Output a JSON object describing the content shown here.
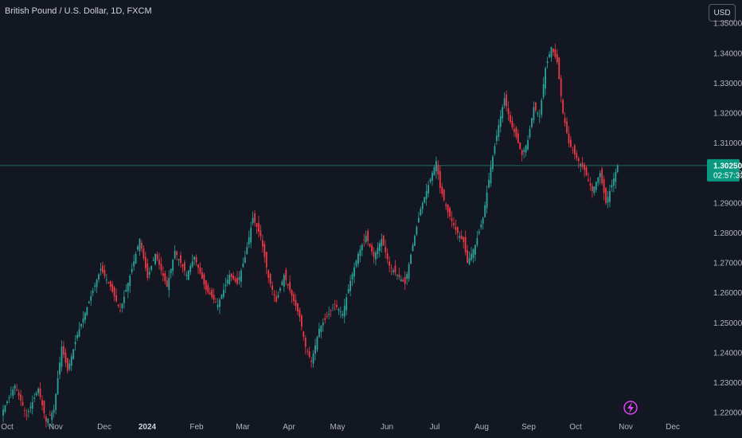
{
  "header": {
    "title": "British Pound / U.S. Dollar, 1D, FXCM",
    "currency_label": "USD"
  },
  "price_tag": {
    "price": "1.30250",
    "countdown": "02:57:32",
    "color": "#089981"
  },
  "colors": {
    "background": "#131722",
    "up": "#26a69a",
    "down": "#f23645",
    "axis_text": "#b2b5be",
    "current_line": "#1e6b63",
    "lightning_icon": "#e040fb"
  },
  "icons": {
    "marker": "lightning-icon"
  },
  "chart_data": {
    "type": "candlestick",
    "title": "British Pound / U.S. Dollar, 1D, FXCM",
    "ylim": [
      1.2195,
      1.3498
    ],
    "y_ticks": [
      "1.35000",
      "1.34000",
      "1.33000",
      "1.32000",
      "1.31000",
      "1.30000",
      "1.29000",
      "1.28000",
      "1.27000",
      "1.26000",
      "1.25000",
      "1.24000",
      "1.23000",
      "1.22000"
    ],
    "x_ticks": [
      "Oct",
      "Nov",
      "Dec",
      "2024",
      "Feb",
      "Mar",
      "Apr",
      "May",
      "Jun",
      "Jul",
      "Aug",
      "Sep",
      "Oct",
      "Nov",
      "Dec"
    ],
    "x_ticks_bold": [
      "2024"
    ],
    "last_price": 1.3025,
    "anchors": [
      [
        0,
        1.221
      ],
      [
        6,
        1.229
      ],
      [
        12,
        1.219
      ],
      [
        18,
        1.228
      ],
      [
        22,
        1.217
      ],
      [
        26,
        1.221
      ],
      [
        30,
        1.242
      ],
      [
        33,
        1.234
      ],
      [
        38,
        1.246
      ],
      [
        44,
        1.257
      ],
      [
        50,
        1.268
      ],
      [
        55,
        1.262
      ],
      [
        60,
        1.254
      ],
      [
        66,
        1.268
      ],
      [
        70,
        1.278
      ],
      [
        74,
        1.265
      ],
      [
        78,
        1.273
      ],
      [
        84,
        1.262
      ],
      [
        88,
        1.274
      ],
      [
        94,
        1.266
      ],
      [
        98,
        1.272
      ],
      [
        104,
        1.261
      ],
      [
        110,
        1.256
      ],
      [
        116,
        1.266
      ],
      [
        120,
        1.263
      ],
      [
        124,
        1.272
      ],
      [
        128,
        1.285
      ],
      [
        132,
        1.279
      ],
      [
        136,
        1.265
      ],
      [
        140,
        1.257
      ],
      [
        144,
        1.266
      ],
      [
        148,
        1.259
      ],
      [
        152,
        1.252
      ],
      [
        155,
        1.242
      ],
      [
        158,
        1.237
      ],
      [
        162,
        1.248
      ],
      [
        166,
        1.252
      ],
      [
        170,
        1.256
      ],
      [
        174,
        1.253
      ],
      [
        178,
        1.264
      ],
      [
        182,
        1.273
      ],
      [
        186,
        1.279
      ],
      [
        190,
        1.272
      ],
      [
        194,
        1.278
      ],
      [
        198,
        1.269
      ],
      [
        202,
        1.266
      ],
      [
        206,
        1.263
      ],
      [
        210,
        1.276
      ],
      [
        214,
        1.288
      ],
      [
        218,
        1.296
      ],
      [
        222,
        1.304
      ],
      [
        224,
        1.295
      ],
      [
        228,
        1.287
      ],
      [
        232,
        1.281
      ],
      [
        236,
        1.277
      ],
      [
        238,
        1.27
      ],
      [
        242,
        1.276
      ],
      [
        246,
        1.285
      ],
      [
        250,
        1.302
      ],
      [
        254,
        1.316
      ],
      [
        257,
        1.325
      ],
      [
        260,
        1.317
      ],
      [
        263,
        1.312
      ],
      [
        266,
        1.306
      ],
      [
        269,
        1.311
      ],
      [
        272,
        1.322
      ],
      [
        275,
        1.319
      ],
      [
        278,
        1.335
      ],
      [
        281,
        1.342
      ],
      [
        284,
        1.337
      ],
      [
        287,
        1.32
      ],
      [
        290,
        1.31
      ],
      [
        294,
        1.305
      ],
      [
        298,
        1.301
      ],
      [
        302,
        1.294
      ],
      [
        306,
        1.3
      ],
      [
        309,
        1.29
      ],
      [
        312,
        1.296
      ],
      [
        315,
        1.3025
      ]
    ]
  }
}
